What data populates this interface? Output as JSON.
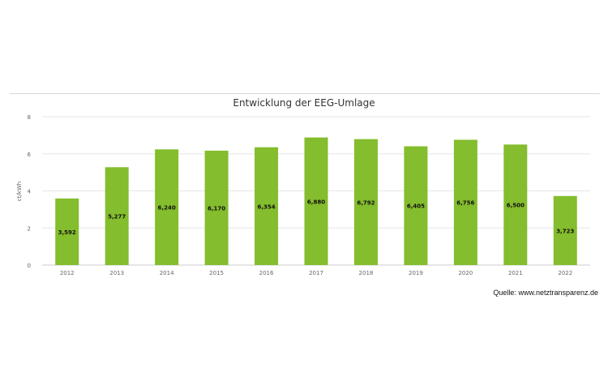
{
  "chart_data": {
    "type": "bar",
    "title": "Entwicklung der EEG-Umlage",
    "ylabel": "ct/kWh",
    "xlabel": "",
    "categories": [
      "2012",
      "2013",
      "2014",
      "2015",
      "2016",
      "2017",
      "2018",
      "2019",
      "2020",
      "2021",
      "2022"
    ],
    "values": [
      3.592,
      5.277,
      6.24,
      6.17,
      6.354,
      6.88,
      6.792,
      6.405,
      6.756,
      6.5,
      3.723
    ],
    "data_labels": [
      "3,592",
      "5,277",
      "6,240",
      "6,170",
      "6,354",
      "6,880",
      "6,792",
      "6,405",
      "6,756",
      "6,500",
      "3,723"
    ],
    "ylim": [
      0,
      8
    ],
    "yticks": [
      0,
      2,
      4,
      6,
      8
    ],
    "grid": true,
    "legend": false,
    "bar_color": "#84bd2d"
  },
  "source_text": "Quelle: www.netztransparenz.de"
}
